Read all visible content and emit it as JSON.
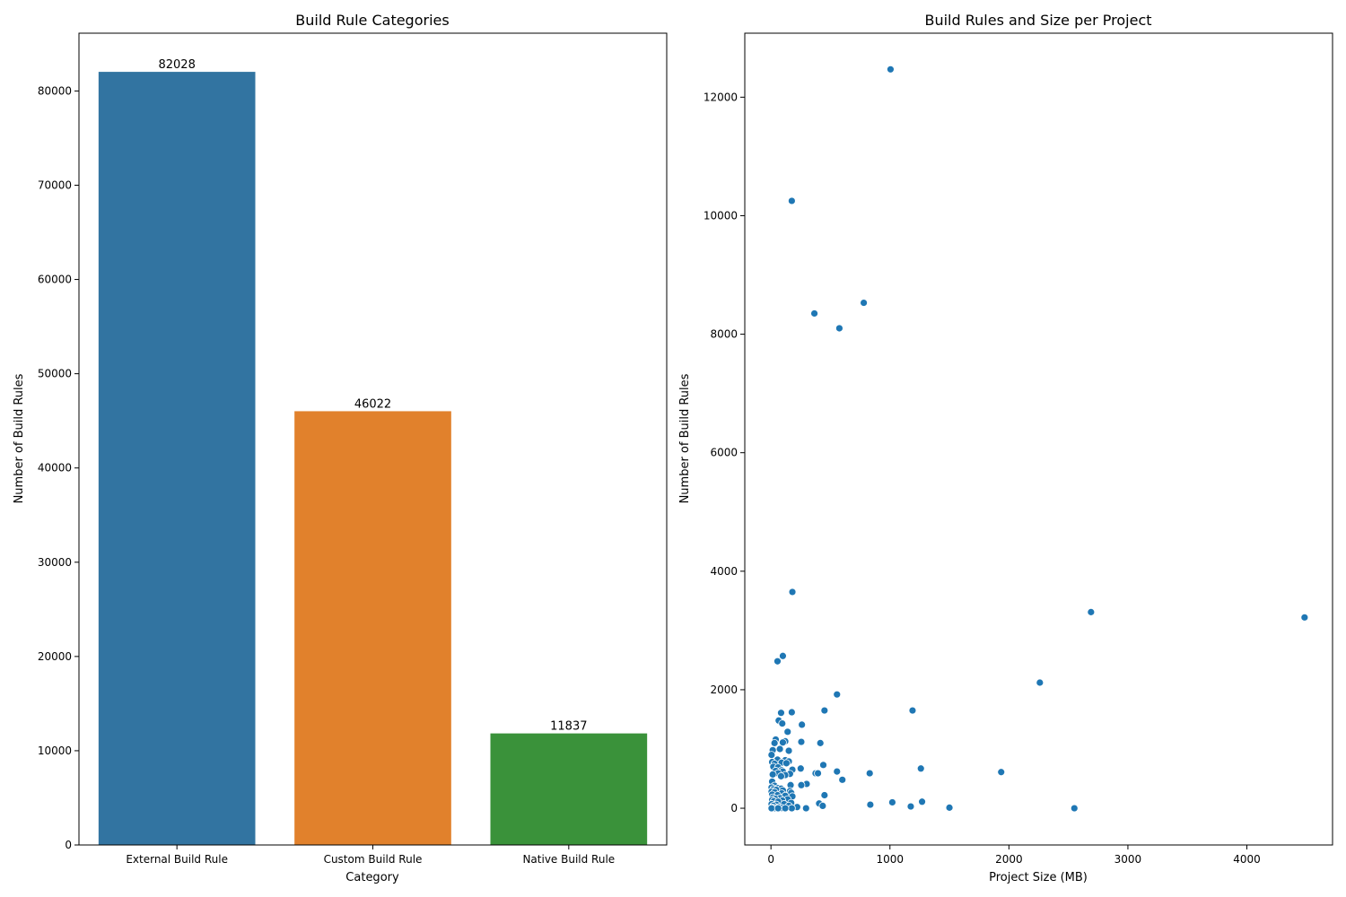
{
  "chart_data": [
    {
      "type": "bar",
      "title": "Build Rule Categories",
      "xlabel": "Category",
      "ylabel": "Number of Build Rules",
      "categories": [
        "External Build Rule",
        "Custom Build Rule",
        "Native Build Rule"
      ],
      "values": [
        82028,
        46022,
        11837
      ],
      "data_labels": [
        "82028",
        "46022",
        "11837"
      ],
      "colors": [
        "#3274a1",
        "#e1812c",
        "#3a923a"
      ],
      "ylim": [
        0,
        86130
      ],
      "yticks": [
        0,
        10000,
        20000,
        30000,
        40000,
        50000,
        60000,
        70000,
        80000
      ],
      "grid": false
    },
    {
      "type": "scatter",
      "title": "Build Rules and Size per Project",
      "xlabel": "Project Size (MB)",
      "ylabel": "Number of Build Rules",
      "xlim": [
        -220,
        4720
      ],
      "ylim": [
        -620,
        13080
      ],
      "xticks": [
        0,
        1000,
        2000,
        3000,
        4000
      ],
      "yticks": [
        0,
        2000,
        4000,
        6000,
        8000,
        10000,
        12000
      ],
      "color": "#1f77b4",
      "grid": false,
      "points": [
        [
          1005,
          12470
        ],
        [
          175,
          10250
        ],
        [
          780,
          8530
        ],
        [
          365,
          8350
        ],
        [
          575,
          8100
        ],
        [
          180,
          3650
        ],
        [
          2690,
          3310
        ],
        [
          4485,
          3220
        ],
        [
          100,
          2570
        ],
        [
          55,
          2480
        ],
        [
          2260,
          2120
        ],
        [
          555,
          1920
        ],
        [
          1190,
          1650
        ],
        [
          450,
          1650
        ],
        [
          85,
          1610
        ],
        [
          175,
          1620
        ],
        [
          65,
          1480
        ],
        [
          95,
          1430
        ],
        [
          260,
          1410
        ],
        [
          140,
          1290
        ],
        [
          40,
          1160
        ],
        [
          30,
          1100
        ],
        [
          255,
          1120
        ],
        [
          120,
          1130
        ],
        [
          100,
          1110
        ],
        [
          415,
          1100
        ],
        [
          75,
          1000
        ],
        [
          15,
          980
        ],
        [
          150,
          970
        ],
        [
          5,
          900
        ],
        [
          55,
          820
        ],
        [
          120,
          810
        ],
        [
          150,
          790
        ],
        [
          10,
          780
        ],
        [
          90,
          770
        ],
        [
          130,
          760
        ],
        [
          30,
          750
        ],
        [
          440,
          730
        ],
        [
          20,
          700
        ],
        [
          60,
          690
        ],
        [
          1260,
          670
        ],
        [
          250,
          670
        ],
        [
          180,
          650
        ],
        [
          90,
          640
        ],
        [
          40,
          630
        ],
        [
          100,
          620
        ],
        [
          555,
          620
        ],
        [
          1935,
          610
        ],
        [
          375,
          590
        ],
        [
          395,
          590
        ],
        [
          830,
          590
        ],
        [
          60,
          590
        ],
        [
          160,
          580
        ],
        [
          15,
          570
        ],
        [
          120,
          560
        ],
        [
          85,
          540
        ],
        [
          600,
          480
        ],
        [
          10,
          450
        ],
        [
          300,
          410
        ],
        [
          255,
          390
        ],
        [
          165,
          390
        ],
        [
          30,
          380
        ],
        [
          5,
          350
        ],
        [
          60,
          340
        ],
        [
          85,
          330
        ],
        [
          20,
          320
        ],
        [
          45,
          310
        ],
        [
          100,
          300
        ],
        [
          160,
          290
        ],
        [
          5,
          280
        ],
        [
          30,
          270
        ],
        [
          170,
          260
        ],
        [
          90,
          250
        ],
        [
          10,
          230
        ],
        [
          55,
          220
        ],
        [
          450,
          220
        ],
        [
          120,
          210
        ],
        [
          180,
          200
        ],
        [
          15,
          180
        ],
        [
          75,
          170
        ],
        [
          35,
          160
        ],
        [
          140,
          150
        ],
        [
          10,
          140
        ],
        [
          95,
          130
        ],
        [
          25,
          120
        ],
        [
          60,
          110
        ],
        [
          1270,
          110
        ],
        [
          1020,
          100
        ],
        [
          170,
          90
        ],
        [
          405,
          80
        ],
        [
          5,
          70
        ],
        [
          110,
          70
        ],
        [
          835,
          60
        ],
        [
          45,
          60
        ],
        [
          20,
          40
        ],
        [
          150,
          40
        ],
        [
          435,
          40
        ],
        [
          1175,
          30
        ],
        [
          220,
          20
        ],
        [
          70,
          20
        ],
        [
          10,
          10
        ],
        [
          1500,
          10
        ],
        [
          90,
          5
        ],
        [
          175,
          0
        ],
        [
          295,
          0
        ],
        [
          2550,
          0
        ],
        [
          30,
          0
        ],
        [
          5,
          0
        ],
        [
          120,
          0
        ],
        [
          60,
          0
        ]
      ]
    }
  ]
}
